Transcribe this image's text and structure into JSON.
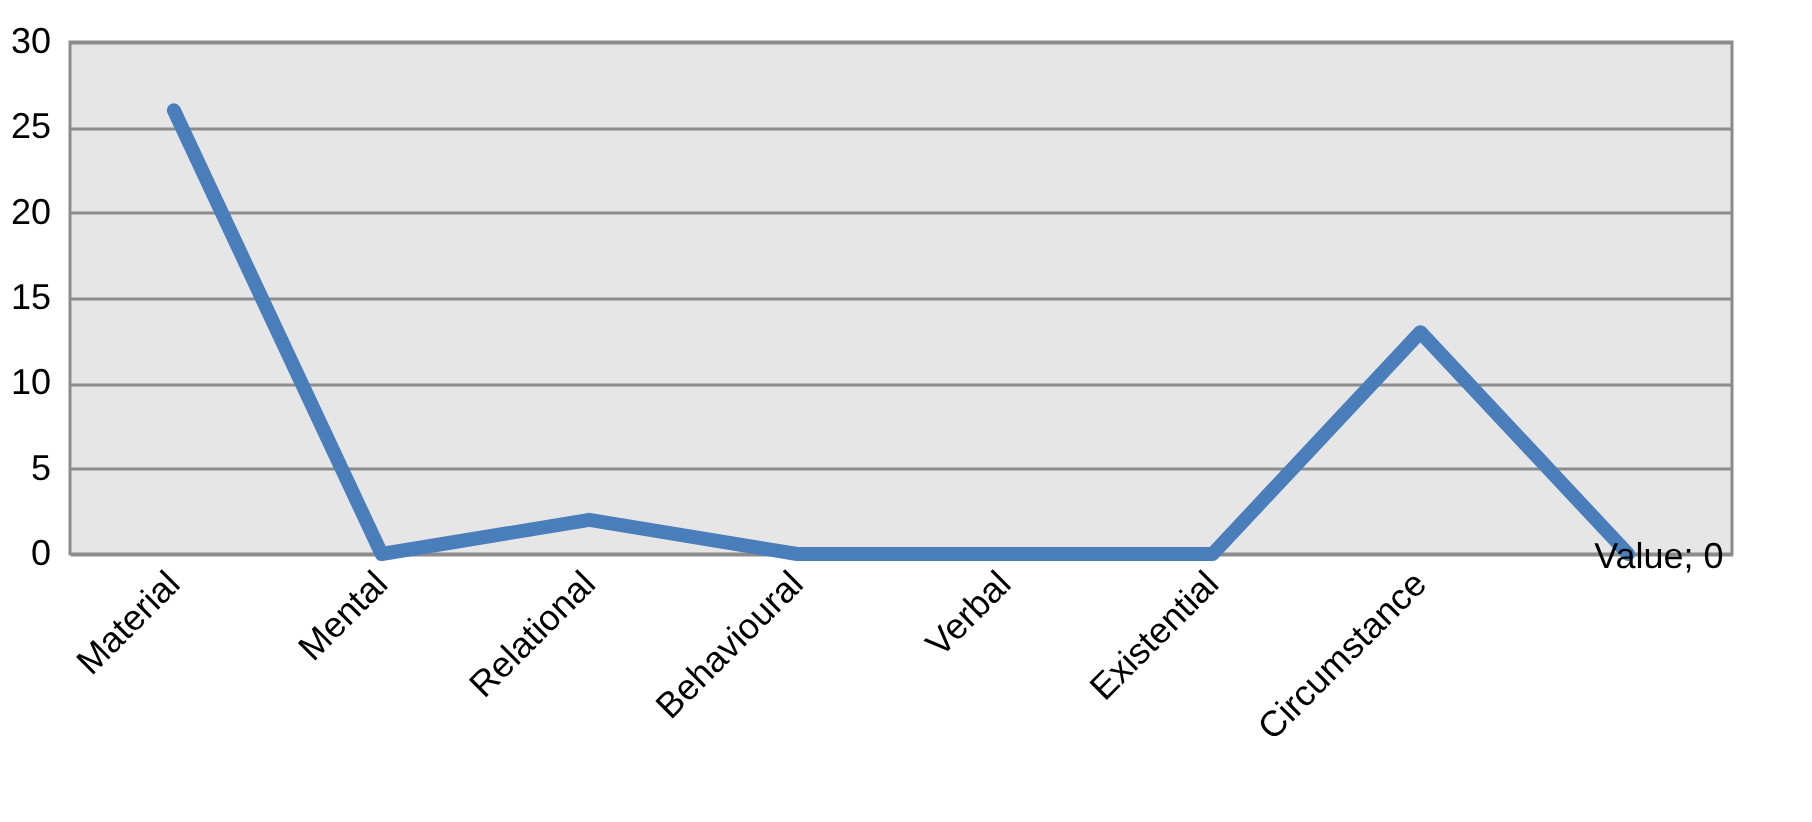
{
  "chart_data": {
    "type": "line",
    "categories": [
      "Material",
      "Mental",
      "Relational",
      "Behavioural",
      "Verbal",
      "Existential",
      "Circumstance",
      null
    ],
    "series": [
      {
        "color": "#4a7ebb",
        "values": [
          26,
          0,
          2,
          0,
          0,
          0,
          13,
          0
        ],
        "value_labels": [
          null,
          null,
          null,
          null,
          null,
          null,
          null,
          "Value; 0"
        ]
      }
    ],
    "ylim": [
      0,
      30
    ],
    "yticks": [
      0,
      5,
      10,
      15,
      20,
      25,
      30
    ],
    "grid": "y",
    "marker": "none",
    "line_style": "solid"
  }
}
